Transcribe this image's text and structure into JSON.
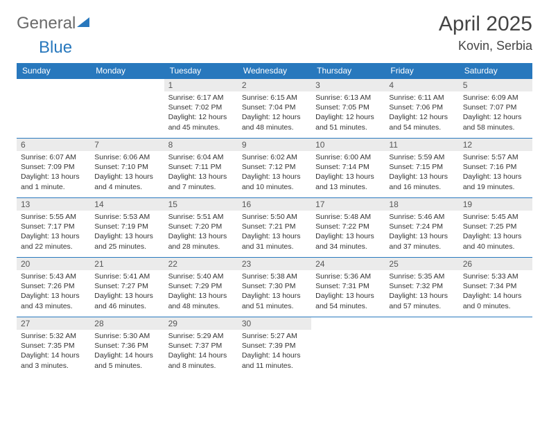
{
  "brand": {
    "part1": "General",
    "part2": "Blue",
    "gray_color": "#6a6a6a",
    "blue_color": "#2878bd"
  },
  "title": {
    "month": "April 2025",
    "location": "Kovin, Serbia"
  },
  "calendar": {
    "type": "table",
    "header_bg": "#2878bd",
    "header_fg": "#ffffff",
    "border_color": "#2878bd",
    "daynum_bg": "#ebebeb",
    "text_color": "#333333",
    "font_size_header": 12,
    "font_size_daynum": 12,
    "font_size_body": 10.5,
    "columns": [
      "Sunday",
      "Monday",
      "Tuesday",
      "Wednesday",
      "Thursday",
      "Friday",
      "Saturday"
    ],
    "weeks": [
      [
        null,
        null,
        {
          "n": "1",
          "sr": "6:17 AM",
          "ss": "7:02 PM",
          "dl": "12 hours and 45 minutes."
        },
        {
          "n": "2",
          "sr": "6:15 AM",
          "ss": "7:04 PM",
          "dl": "12 hours and 48 minutes."
        },
        {
          "n": "3",
          "sr": "6:13 AM",
          "ss": "7:05 PM",
          "dl": "12 hours and 51 minutes."
        },
        {
          "n": "4",
          "sr": "6:11 AM",
          "ss": "7:06 PM",
          "dl": "12 hours and 54 minutes."
        },
        {
          "n": "5",
          "sr": "6:09 AM",
          "ss": "7:07 PM",
          "dl": "12 hours and 58 minutes."
        }
      ],
      [
        {
          "n": "6",
          "sr": "6:07 AM",
          "ss": "7:09 PM",
          "dl": "13 hours and 1 minute."
        },
        {
          "n": "7",
          "sr": "6:06 AM",
          "ss": "7:10 PM",
          "dl": "13 hours and 4 minutes."
        },
        {
          "n": "8",
          "sr": "6:04 AM",
          "ss": "7:11 PM",
          "dl": "13 hours and 7 minutes."
        },
        {
          "n": "9",
          "sr": "6:02 AM",
          "ss": "7:12 PM",
          "dl": "13 hours and 10 minutes."
        },
        {
          "n": "10",
          "sr": "6:00 AM",
          "ss": "7:14 PM",
          "dl": "13 hours and 13 minutes."
        },
        {
          "n": "11",
          "sr": "5:59 AM",
          "ss": "7:15 PM",
          "dl": "13 hours and 16 minutes."
        },
        {
          "n": "12",
          "sr": "5:57 AM",
          "ss": "7:16 PM",
          "dl": "13 hours and 19 minutes."
        }
      ],
      [
        {
          "n": "13",
          "sr": "5:55 AM",
          "ss": "7:17 PM",
          "dl": "13 hours and 22 minutes."
        },
        {
          "n": "14",
          "sr": "5:53 AM",
          "ss": "7:19 PM",
          "dl": "13 hours and 25 minutes."
        },
        {
          "n": "15",
          "sr": "5:51 AM",
          "ss": "7:20 PM",
          "dl": "13 hours and 28 minutes."
        },
        {
          "n": "16",
          "sr": "5:50 AM",
          "ss": "7:21 PM",
          "dl": "13 hours and 31 minutes."
        },
        {
          "n": "17",
          "sr": "5:48 AM",
          "ss": "7:22 PM",
          "dl": "13 hours and 34 minutes."
        },
        {
          "n": "18",
          "sr": "5:46 AM",
          "ss": "7:24 PM",
          "dl": "13 hours and 37 minutes."
        },
        {
          "n": "19",
          "sr": "5:45 AM",
          "ss": "7:25 PM",
          "dl": "13 hours and 40 minutes."
        }
      ],
      [
        {
          "n": "20",
          "sr": "5:43 AM",
          "ss": "7:26 PM",
          "dl": "13 hours and 43 minutes."
        },
        {
          "n": "21",
          "sr": "5:41 AM",
          "ss": "7:27 PM",
          "dl": "13 hours and 46 minutes."
        },
        {
          "n": "22",
          "sr": "5:40 AM",
          "ss": "7:29 PM",
          "dl": "13 hours and 48 minutes."
        },
        {
          "n": "23",
          "sr": "5:38 AM",
          "ss": "7:30 PM",
          "dl": "13 hours and 51 minutes."
        },
        {
          "n": "24",
          "sr": "5:36 AM",
          "ss": "7:31 PM",
          "dl": "13 hours and 54 minutes."
        },
        {
          "n": "25",
          "sr": "5:35 AM",
          "ss": "7:32 PM",
          "dl": "13 hours and 57 minutes."
        },
        {
          "n": "26",
          "sr": "5:33 AM",
          "ss": "7:34 PM",
          "dl": "14 hours and 0 minutes."
        }
      ],
      [
        {
          "n": "27",
          "sr": "5:32 AM",
          "ss": "7:35 PM",
          "dl": "14 hours and 3 minutes."
        },
        {
          "n": "28",
          "sr": "5:30 AM",
          "ss": "7:36 PM",
          "dl": "14 hours and 5 minutes."
        },
        {
          "n": "29",
          "sr": "5:29 AM",
          "ss": "7:37 PM",
          "dl": "14 hours and 8 minutes."
        },
        {
          "n": "30",
          "sr": "5:27 AM",
          "ss": "7:39 PM",
          "dl": "14 hours and 11 minutes."
        },
        null,
        null,
        null
      ]
    ]
  },
  "labels": {
    "sunrise": "Sunrise:",
    "sunset": "Sunset:",
    "daylight": "Daylight:"
  }
}
